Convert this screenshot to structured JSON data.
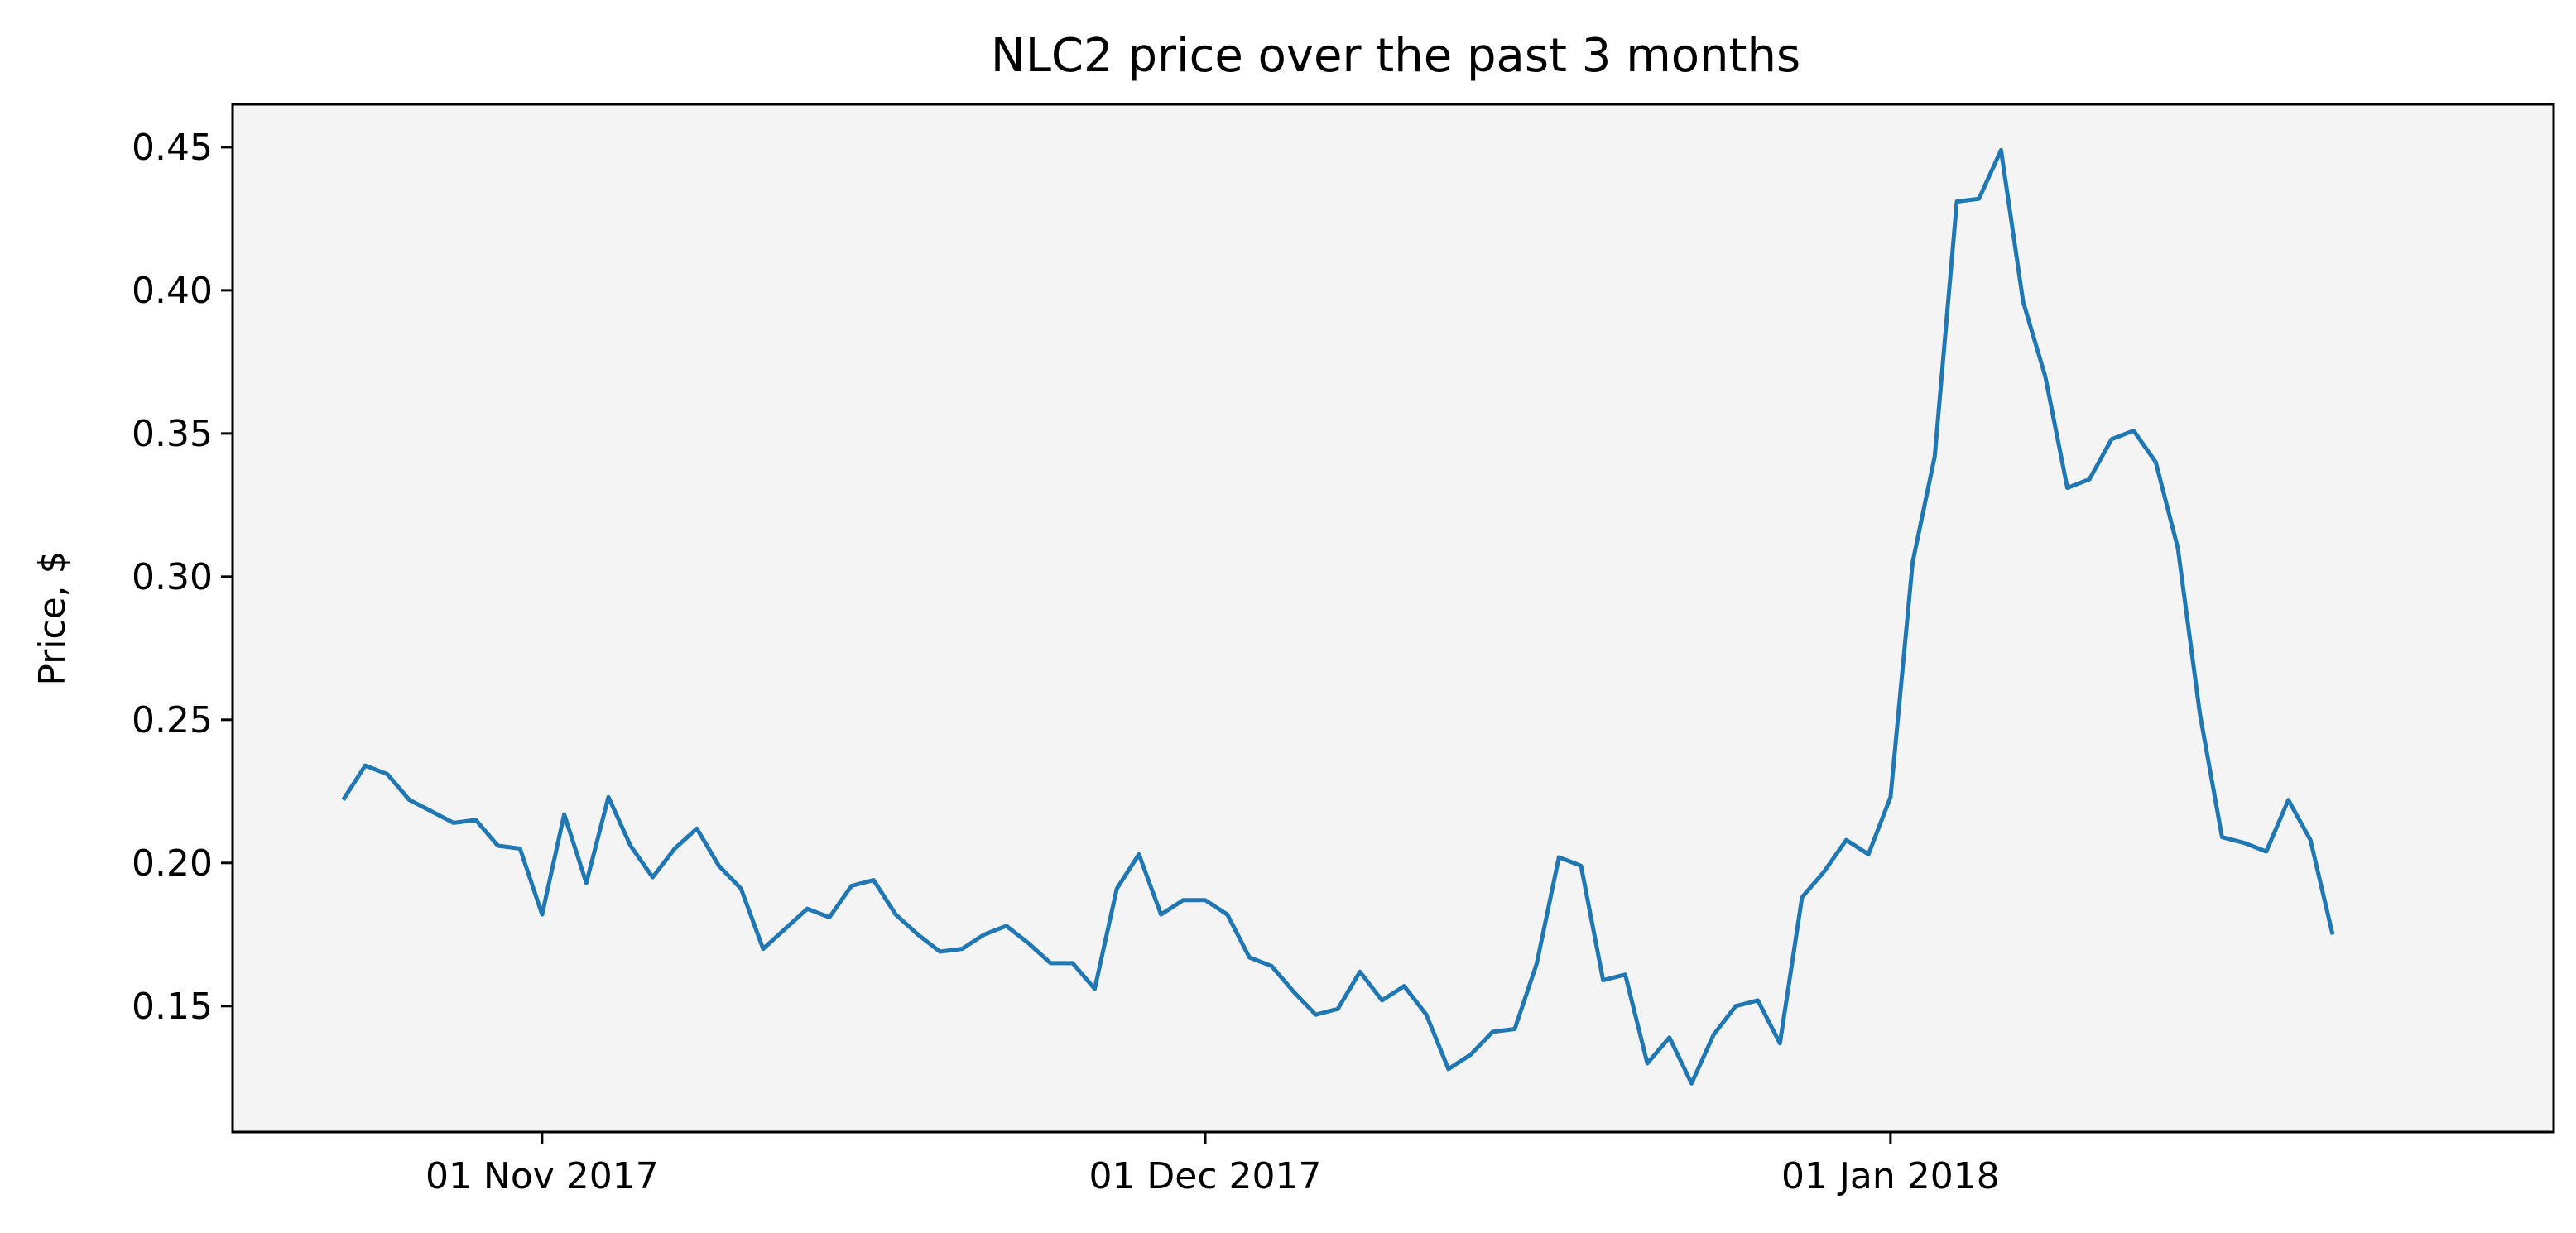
{
  "chart_data": {
    "type": "line",
    "title": "NLC2 price over the past 3 months",
    "xlabel": "",
    "ylabel": "Price, $",
    "x_start": "2017-10-23",
    "x_interval_days": 1,
    "xlim": [
      "2017-10-18",
      "2018-01-31"
    ],
    "ylim": [
      0.106,
      0.465
    ],
    "xticks": [
      {
        "date": "2017-11-01",
        "label": "01 Nov 2017"
      },
      {
        "date": "2017-12-01",
        "label": "01 Dec 2017"
      },
      {
        "date": "2018-01-01",
        "label": "01 Jan 2018"
      }
    ],
    "yticks": [
      0.15,
      0.2,
      0.25,
      0.3,
      0.35,
      0.4,
      0.45
    ],
    "yticks_labels": [
      "0.15",
      "0.20",
      "0.25",
      "0.30",
      "0.35",
      "0.40",
      "0.45"
    ],
    "grid": false,
    "background": "#f4f4f4",
    "line_color": "#1f77b4",
    "series": [
      {
        "values": [
          0.222,
          0.234,
          0.231,
          0.222,
          0.218,
          0.214,
          0.215,
          0.206,
          0.205,
          0.182,
          0.217,
          0.193,
          0.223,
          0.206,
          0.195,
          0.205,
          0.212,
          0.199,
          0.191,
          0.17,
          0.177,
          0.184,
          0.181,
          0.192,
          0.194,
          0.182,
          0.175,
          0.169,
          0.17,
          0.175,
          0.178,
          0.172,
          0.165,
          0.165,
          0.156,
          0.191,
          0.203,
          0.182,
          0.187,
          0.187,
          0.182,
          0.167,
          0.164,
          0.155,
          0.147,
          0.149,
          0.162,
          0.152,
          0.157,
          0.147,
          0.128,
          0.133,
          0.141,
          0.142,
          0.165,
          0.202,
          0.199,
          0.159,
          0.161,
          0.13,
          0.139,
          0.123,
          0.14,
          0.15,
          0.152,
          0.137,
          0.188,
          0.197,
          0.208,
          0.203,
          0.223,
          0.305,
          0.342,
          0.431,
          0.432,
          0.449,
          0.396,
          0.37,
          0.331,
          0.334,
          0.348,
          0.351,
          0.34,
          0.31,
          0.252,
          0.209,
          0.207,
          0.204,
          0.222,
          0.208,
          0.175
        ]
      }
    ]
  }
}
